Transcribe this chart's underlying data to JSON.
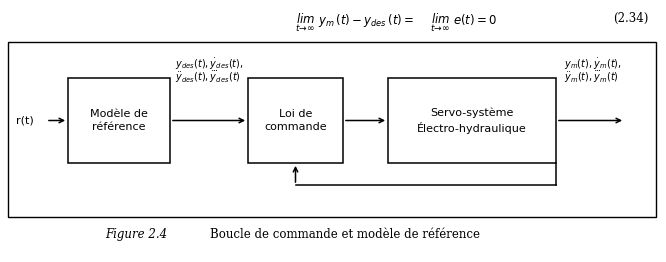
{
  "bg_color": "#ffffff",
  "border_color": "#000000",
  "text_color": "#000000",
  "formula_number": "(2.34)",
  "figure_caption_num": "Figure 2.4",
  "figure_caption_text": "Boucle de commande et modèle de référence",
  "block1_label": "Modèle de\nréférence",
  "block2_label": "Loi de\ncommande",
  "block3_label": "Servo-système\nÉlectro-hydraulique",
  "input_label": "r(t)"
}
